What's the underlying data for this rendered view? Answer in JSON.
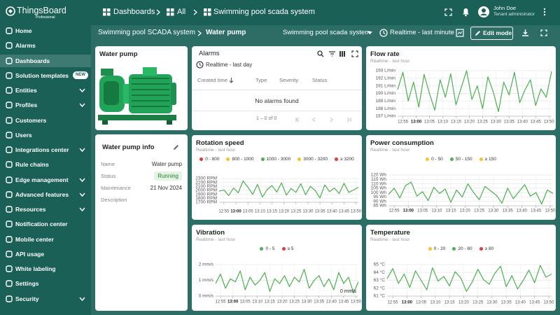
{
  "header": {
    "brand": "ThingsBoard",
    "edition": "Professional",
    "breadcrumb": [
      "Dashboards",
      "All",
      "Swimming pool scada system"
    ],
    "user_name": "John Doe",
    "user_role": "Tenant administrator"
  },
  "sidebar": {
    "items": [
      {
        "label": "Home"
      },
      {
        "label": "Alarms"
      },
      {
        "label": "Dashboards",
        "active": true
      },
      {
        "label": "Solution templates",
        "badge": "NEW"
      },
      {
        "label": "Entities",
        "expandable": true
      },
      {
        "label": "Profiles",
        "expandable": true
      },
      {
        "label": "Customers"
      },
      {
        "label": "Users"
      },
      {
        "label": "Integrations center",
        "expandable": true
      },
      {
        "label": "Rule chains"
      },
      {
        "label": "Edge management",
        "expandable": true
      },
      {
        "label": "Advanced features",
        "expandable": true
      },
      {
        "label": "Resources",
        "expandable": true
      },
      {
        "label": "Notification center"
      },
      {
        "label": "Mobile center"
      },
      {
        "label": "API usage"
      },
      {
        "label": "White labeling"
      },
      {
        "label": "Settings"
      },
      {
        "label": "Security",
        "expandable": true
      }
    ]
  },
  "toolbar": {
    "path": [
      "Swimming pool SCADA system",
      "Water pump"
    ],
    "dashboard_select": "Swimming pool scada system",
    "timewindow": "Realtime - last minute",
    "edit_button": "Edit mode"
  },
  "pump_card": {
    "title": "Water pump"
  },
  "info_card": {
    "title": "Water pump info",
    "rows": [
      [
        "Name",
        "Water pump"
      ],
      [
        "Status",
        "Running"
      ],
      [
        "Maintenance",
        "21 Nov 2024"
      ],
      [
        "Description"
      ]
    ]
  },
  "alarms": {
    "title": "Alarms",
    "timewindow": "Realtime - last day",
    "columns": [
      "Created time",
      "Type",
      "Severity",
      "Status"
    ],
    "empty": "No alarms found",
    "pagination": "1 – 0 of 0"
  },
  "chart_data": [
    {
      "type": "line",
      "title": "Flow rate",
      "subtitle": "Realtime - last hour",
      "color": "#4caf50",
      "grid": true,
      "x": [
        "12:53",
        "12:55",
        "12:57",
        "12:59",
        "13:01",
        "13:03",
        "13:05",
        "13:07",
        "13:09",
        "13:11",
        "13:13",
        "13:15",
        "13:17",
        "13:19",
        "13:21",
        "13:23",
        "13:25",
        "13:27",
        "13:29",
        "13:31",
        "13:33",
        "13:35",
        "13:37",
        "13:39",
        "13:41",
        "13:43",
        "13:45",
        "13:47",
        "13:49",
        "13:51"
      ],
      "values": [
        190.5,
        192.8,
        189,
        191.5,
        188.2,
        192.5,
        190,
        187.8,
        191.8,
        189.5,
        192.6,
        188.5,
        190.8,
        193,
        189.2,
        191,
        188,
        192.2,
        190.2,
        187.6,
        191.5,
        189.8,
        192.8,
        188.8,
        190.5,
        191.8,
        188.4,
        190.6,
        189.5,
        192.9
      ],
      "ylim": [
        187,
        193
      ],
      "yticks": [
        {
          "value": 187,
          "label": "187 L/min"
        },
        {
          "value": 188,
          "label": "188 L/min"
        },
        {
          "value": 189,
          "label": "189 L/min"
        },
        {
          "value": 190,
          "label": "190 L/min"
        },
        {
          "value": 191,
          "label": "191 L/min"
        },
        {
          "value": 192,
          "label": "192 L/min"
        },
        {
          "value": 193,
          "label": "193 L/min"
        }
      ],
      "xticks": [
        "12:55",
        "13:00",
        "13:05",
        "13:10",
        "13:15",
        "13:20",
        "13:25",
        "13:30",
        "13:35",
        "13:40",
        "13:45",
        "13:50"
      ]
    },
    {
      "type": "line",
      "title": "Rotation speed",
      "subtitle": "Realtime - last hour",
      "color": "#4caf50",
      "grid": true,
      "legend": [
        {
          "label": "0 - 800",
          "color": "#e53935"
        },
        {
          "label": "800 - 1000",
          "color": "#fbc02d"
        },
        {
          "label": "1000 - 3000",
          "color": "#4caf50"
        },
        {
          "label": "3000 - 3200",
          "color": "#fbc02d"
        },
        {
          "label": "≥ 3200",
          "color": "#e53935"
        }
      ],
      "x": [
        "12:53",
        "12:55",
        "12:57",
        "12:59",
        "13:01",
        "13:03",
        "13:05",
        "13:07",
        "13:09",
        "13:11",
        "13:13",
        "13:15",
        "13:17",
        "13:19",
        "13:21",
        "13:23",
        "13:25",
        "13:27",
        "13:29",
        "13:31",
        "13:33",
        "13:35",
        "13:37",
        "13:39",
        "13:41",
        "13:43",
        "13:45",
        "13:47",
        "13:49",
        "13:51"
      ],
      "values": [
        1980,
        2010,
        1870,
        2060,
        1940,
        2240,
        2080,
        1900,
        2150,
        1830,
        2020,
        2120,
        1960,
        2190,
        1880,
        2050,
        1950,
        2170,
        1890,
        2100,
        2000,
        1810,
        2140,
        1970,
        2060,
        1920,
        2180,
        1950,
        2010,
        2080
      ],
      "ylim": [
        1700,
        2300
      ],
      "yticks": [
        {
          "value": 1700,
          "label": "1700 RPM"
        },
        {
          "value": 1800,
          "label": "1800 RPM"
        },
        {
          "value": 1900,
          "label": "1900 RPM"
        },
        {
          "value": 2000,
          "label": "2000 RPM"
        },
        {
          "value": 2100,
          "label": "2100 RPM"
        },
        {
          "value": 2200,
          "label": "2200 RPM"
        },
        {
          "value": 2300,
          "label": "2300 RPM"
        }
      ],
      "xticks": [
        "12:55",
        "13:00",
        "13:05",
        "13:10",
        "13:15",
        "13:20",
        "13:25",
        "13:30",
        "13:35",
        "13:40",
        "13:45",
        "13:50"
      ]
    },
    {
      "type": "line",
      "title": "Power consumption",
      "subtitle": "Realtime - last hour",
      "color": "#4caf50",
      "grid": true,
      "legend": [
        {
          "label": "0 - 50",
          "color": "#fbc02d"
        },
        {
          "label": "50 - 150",
          "color": "#4caf50"
        },
        {
          "label": "≥ 150",
          "color": "#fbc02d"
        }
      ],
      "x": [
        "12:53",
        "12:55",
        "12:57",
        "12:59",
        "13:01",
        "13:03",
        "13:05",
        "13:07",
        "13:09",
        "13:11",
        "13:13",
        "13:15",
        "13:17",
        "13:19",
        "13:21",
        "13:23",
        "13:25",
        "13:27",
        "13:29",
        "13:31",
        "13:33",
        "13:35",
        "13:37",
        "13:39",
        "13:41",
        "13:43",
        "13:45",
        "13:47",
        "13:49",
        "13:51"
      ],
      "values": [
        98,
        105,
        94,
        108,
        112,
        96,
        101,
        91,
        106,
        99,
        104,
        89,
        103,
        95,
        110,
        100,
        92,
        107,
        102,
        97,
        88,
        105,
        93,
        101,
        109,
        96,
        100,
        87,
        103,
        99
      ],
      "ylim": [
        85,
        120
      ],
      "yticks": [
        {
          "value": 85,
          "label": "85 Wh"
        },
        {
          "value": 90,
          "label": "90 Wh"
        },
        {
          "value": 95,
          "label": "95 Wh"
        },
        {
          "value": 100,
          "label": "100 Wh"
        },
        {
          "value": 105,
          "label": "105 Wh"
        },
        {
          "value": 110,
          "label": "110 Wh"
        },
        {
          "value": 115,
          "label": "115 Wh"
        },
        {
          "value": 120,
          "label": "120 Wh"
        }
      ],
      "xticks": [
        "12:55",
        "13:00",
        "13:05",
        "13:10",
        "13:15",
        "13:20",
        "13:25",
        "13:30",
        "13:35",
        "13:40",
        "13:45",
        "13:50"
      ]
    },
    {
      "type": "line",
      "title": "Vibration",
      "subtitle": "Realtime - last hour",
      "color": "#4caf50",
      "grid": true,
      "annotation": "0 mm/s",
      "legend": [
        {
          "label": "0 - 5",
          "color": "#4caf50"
        },
        {
          "label": "≥ 5",
          "color": "#e53935"
        }
      ],
      "x": [
        "12:53",
        "12:55",
        "12:57",
        "12:59",
        "13:01",
        "13:03",
        "13:05",
        "13:07",
        "13:09",
        "13:11",
        "13:13",
        "13:15",
        "13:17",
        "13:19",
        "13:21",
        "13:23",
        "13:25",
        "13:27",
        "13:29",
        "13:31",
        "13:33",
        "13:35",
        "13:37",
        "13:39",
        "13:41",
        "13:43",
        "13:45",
        "13:47",
        "13:49",
        "13:51"
      ],
      "values": [
        0.8,
        1.4,
        0.5,
        1.1,
        0.9,
        1.6,
        0.4,
        1.2,
        0.7,
        1.0,
        1.5,
        0.3,
        1.1,
        0.8,
        1.3,
        0.6,
        1.2,
        0.9,
        1.7,
        0.5,
        1.0,
        1.3,
        0.6,
        1.1,
        0.4,
        1.5,
        0.8,
        1.2,
        0.2,
        0.9
      ],
      "ylim": [
        0,
        2
      ],
      "yticks": [
        {
          "value": 0,
          "label": "0 mm/s"
        },
        {
          "value": 1,
          "label": "1 mm/s"
        },
        {
          "value": 2,
          "label": "2 mm/s"
        }
      ],
      "xticks": [
        "12:55",
        "13:00",
        "13:05",
        "13:10",
        "13:15",
        "13:20",
        "13:25",
        "13:30",
        "13:35",
        "13:40",
        "13:45",
        "13:50"
      ]
    },
    {
      "type": "line",
      "title": "Temperature",
      "subtitle": "Realtime - last hour",
      "color": "#4caf50",
      "grid": true,
      "legend": [
        {
          "label": "0 - 20",
          "color": "#fbc02d"
        },
        {
          "label": "20 - 80",
          "color": "#4caf50"
        },
        {
          "label": "≥ 80",
          "color": "#e53935"
        }
      ],
      "x": [
        "12:53",
        "12:55",
        "12:57",
        "12:59",
        "13:01",
        "13:03",
        "13:05",
        "13:07",
        "13:09",
        "13:11",
        "13:13",
        "13:15",
        "13:17",
        "13:19",
        "13:21",
        "13:23",
        "13:25",
        "13:27",
        "13:29",
        "13:31",
        "13:33",
        "13:35",
        "13:37",
        "13:39",
        "13:41",
        "13:43",
        "13:45",
        "13:47",
        "13:49",
        "13:51"
      ],
      "values": [
        63.2,
        64.5,
        62.6,
        63.8,
        62.1,
        64.2,
        63.0,
        61.8,
        64.6,
        62.9,
        63.5,
        62.3,
        64.1,
        63.3,
        61.6,
        62.8,
        64.4,
        63.1,
        62.5,
        63.9,
        64.8,
        62.2,
        63.6,
        61.9,
        63.0,
        64.3,
        62.7,
        64.9,
        63.4,
        63.8
      ],
      "ylim": [
        61,
        65
      ],
      "yticks": [
        {
          "value": 61,
          "label": "61 °C"
        },
        {
          "value": 62,
          "label": "62 °C"
        },
        {
          "value": 63,
          "label": "63 °C"
        },
        {
          "value": 64,
          "label": "64 °C"
        },
        {
          "value": 65,
          "label": "65 °C"
        }
      ],
      "xticks": [
        "12:55",
        "13:00",
        "13:05",
        "13:10",
        "13:15",
        "13:20",
        "13:25",
        "13:30",
        "13:35",
        "13:40",
        "13:45",
        "13:50"
      ]
    }
  ]
}
